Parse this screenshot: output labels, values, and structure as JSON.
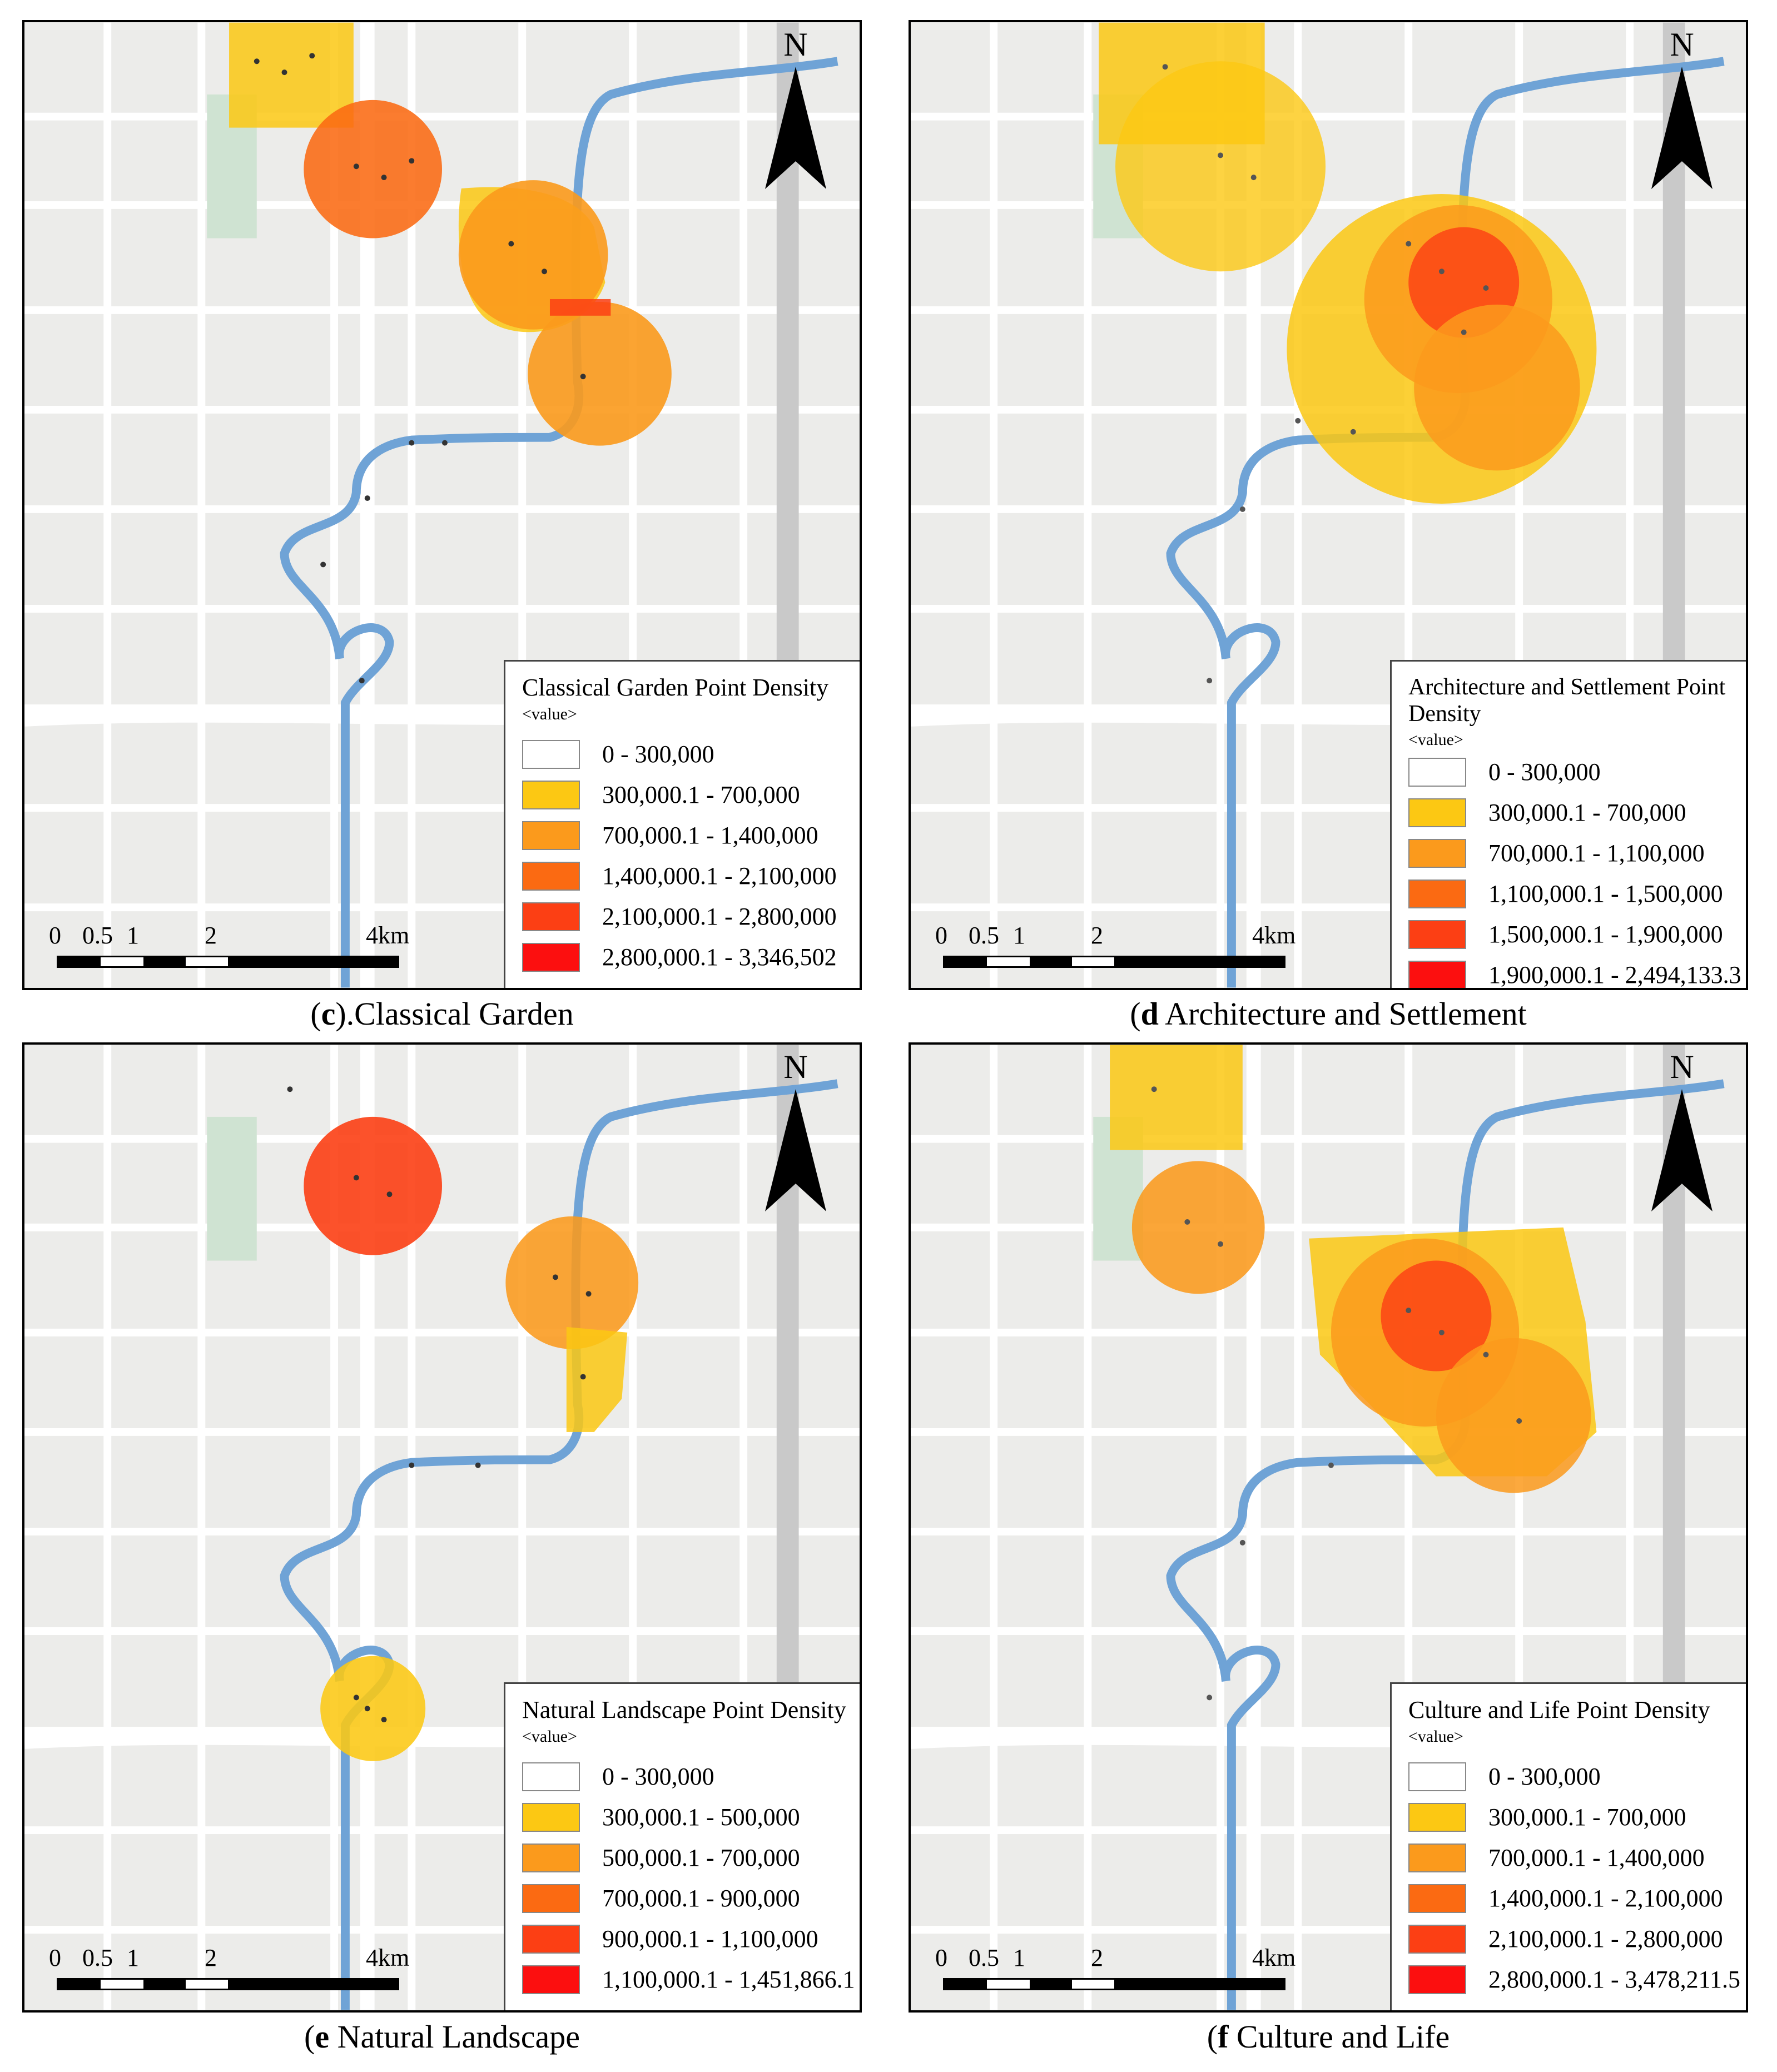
{
  "panels": [
    {
      "id": "c",
      "caption_letter": "c",
      "caption_text": ").Classical Garden",
      "legend_title": "Classical Garden Point Density",
      "legend_sub": "<value>",
      "classes": [
        "0 - 300,000",
        "300,000.1 - 700,000",
        "700,000.1 - 1,400,000",
        "1,400,000.1 - 2,100,000",
        "2,100,000.1 - 2,800,000",
        "2,800,000.1 - 3,346,502"
      ]
    },
    {
      "id": "d",
      "caption_letter": "d",
      "caption_text": " Architecture and Settlement",
      "legend_title": "Architecture and Settlement Point Density",
      "legend_sub": "<value>",
      "classes": [
        "0 - 300,000",
        "300,000.1 - 700,000",
        "700,000.1 - 1,100,000",
        "1,100,000.1 - 1,500,000",
        "1,500,000.1 - 1,900,000",
        "1,900,000.1 - 2,494,133.3"
      ]
    },
    {
      "id": "e",
      "caption_letter": "e",
      "caption_text": " Natural Landscape",
      "legend_title": "Natural Landscape Point Density",
      "legend_sub": "<value>",
      "classes": [
        "0 - 300,000",
        "300,000.1 - 500,000",
        "500,000.1 - 700,000",
        "700,000.1 - 900,000",
        "900,000.1 - 1,100,000",
        "1,100,000.1 - 1,451,866.1"
      ]
    },
    {
      "id": "f",
      "caption_letter": "f",
      "caption_text": " Culture and Life",
      "legend_title": "Culture and Life Point Density",
      "legend_sub": "<value>",
      "classes": [
        "0 - 300,000",
        "300,000.1 - 700,000",
        "700,000.1 - 1,400,000",
        "1,400,000.1 - 2,100,000",
        "2,100,000.1 - 2,800,000",
        "2,800,000.1 - 3,478,211.5"
      ]
    }
  ],
  "class_colors": [
    "#ffffff",
    "#fcc813",
    "#fb9a1c",
    "#fb6a12",
    "#fc3f14",
    "#fc0f0f"
  ],
  "river_color": "#6fa3d6",
  "north_label": "N",
  "scale_labels": [
    "0",
    "0.5",
    "1",
    "2",
    "4km"
  ]
}
